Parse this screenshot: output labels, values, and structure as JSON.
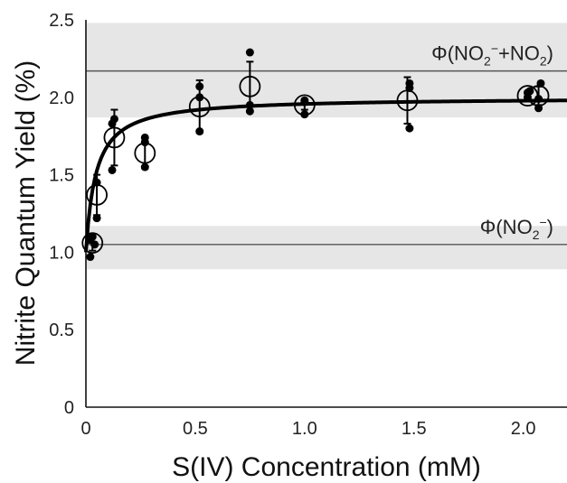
{
  "chart_data": {
    "type": "scatter",
    "xlabel": "S(IV) Concentration (mM)",
    "ylabel": "Nitrite Quantum Yield (%)",
    "xlim": [
      0,
      2.2
    ],
    "ylim": [
      0,
      2.5
    ],
    "x_ticks": [
      {
        "value": 0,
        "label": "0"
      },
      {
        "value": 0.5,
        "label": "0.5"
      },
      {
        "value": 1.0,
        "label": "1.0"
      },
      {
        "value": 1.5,
        "label": "1.5"
      },
      {
        "value": 2.0,
        "label": "2.0"
      }
    ],
    "y_ticks": [
      {
        "value": 0,
        "label": "0"
      },
      {
        "value": 0.5,
        "label": "0.5"
      },
      {
        "value": 1.0,
        "label": "1.0"
      },
      {
        "value": 1.5,
        "label": "1.5"
      },
      {
        "value": 2.0,
        "label": "2.0"
      },
      {
        "value": 2.5,
        "label": "2.5"
      }
    ],
    "reference_bands": [
      {
        "label_base": "Φ(NO",
        "label_sub": "2",
        "label_sup": "−",
        "label_rest": ")",
        "center": 1.05,
        "low": 0.89,
        "high": 1.17
      },
      {
        "label_base": "Φ(NO",
        "label_sub": "2",
        "label_sup": "−",
        "label_mid": "+NO",
        "label_sub2": "2",
        "label_rest": ")",
        "center": 2.17,
        "low": 1.87,
        "high": 2.48
      }
    ],
    "means": [
      {
        "x": 0.03,
        "y": 1.06,
        "err": 0.05
      },
      {
        "x": 0.05,
        "y": 1.37,
        "err": 0.13
      },
      {
        "x": 0.13,
        "y": 1.74,
        "err": 0.18
      },
      {
        "x": 0.27,
        "y": 1.64,
        "err": 0.1
      },
      {
        "x": 0.52,
        "y": 1.94,
        "err": 0.17
      },
      {
        "x": 0.75,
        "y": 2.07,
        "err": 0.16
      },
      {
        "x": 1.0,
        "y": 1.95,
        "err": 0.03
      },
      {
        "x": 1.47,
        "y": 1.98,
        "err": 0.15
      },
      {
        "x": 2.02,
        "y": 2.01,
        "err": 0.02
      },
      {
        "x": 2.07,
        "y": 2.01,
        "err": 0.06
      }
    ],
    "points": [
      {
        "x": 0.02,
        "y": 0.97
      },
      {
        "x": 0.02,
        "y": 1.08
      },
      {
        "x": 0.03,
        "y": 1.1
      },
      {
        "x": 0.04,
        "y": 1.05
      },
      {
        "x": 0.05,
        "y": 1.22
      },
      {
        "x": 0.05,
        "y": 1.45
      },
      {
        "x": 0.12,
        "y": 1.53
      },
      {
        "x": 0.12,
        "y": 1.83
      },
      {
        "x": 0.13,
        "y": 1.86
      },
      {
        "x": 0.27,
        "y": 1.55
      },
      {
        "x": 0.27,
        "y": 1.71
      },
      {
        "x": 0.27,
        "y": 1.74
      },
      {
        "x": 0.52,
        "y": 1.78
      },
      {
        "x": 0.52,
        "y": 2.0
      },
      {
        "x": 0.52,
        "y": 2.07
      },
      {
        "x": 0.75,
        "y": 1.91
      },
      {
        "x": 0.75,
        "y": 1.95
      },
      {
        "x": 0.75,
        "y": 2.29
      },
      {
        "x": 1.0,
        "y": 1.89
      },
      {
        "x": 1.0,
        "y": 1.97
      },
      {
        "x": 1.0,
        "y": 1.98
      },
      {
        "x": 1.48,
        "y": 1.8
      },
      {
        "x": 1.48,
        "y": 2.06
      },
      {
        "x": 1.48,
        "y": 2.09
      },
      {
        "x": 2.02,
        "y": 2.0
      },
      {
        "x": 2.02,
        "y": 2.03
      },
      {
        "x": 2.03,
        "y": 2.04
      },
      {
        "x": 2.07,
        "y": 1.93
      },
      {
        "x": 2.07,
        "y": 1.99
      },
      {
        "x": 2.08,
        "y": 2.09
      }
    ],
    "fit": {
      "type": "saturation",
      "y0": 1.0,
      "ymax": 2.0,
      "k": 0.045
    },
    "grid": false,
    "legend": "none"
  }
}
